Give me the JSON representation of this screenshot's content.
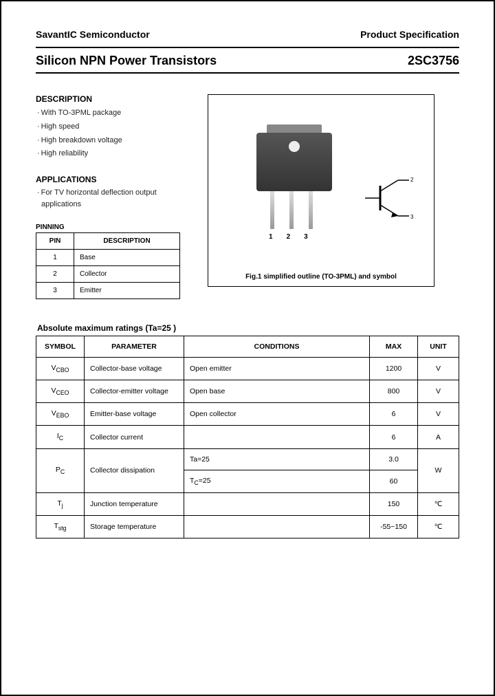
{
  "header": {
    "company": "SavantIC Semiconductor",
    "spec": "Product Specification"
  },
  "title": {
    "main": "Silicon NPN Power Transistors",
    "part": "2SC3756"
  },
  "description": {
    "heading": "DESCRIPTION",
    "items": [
      "With TO-3PML package",
      "High speed",
      "High breakdown voltage",
      "High reliability"
    ]
  },
  "applications": {
    "heading": "APPLICATIONS",
    "items": [
      "For TV horizontal deflection output applications"
    ]
  },
  "pinning": {
    "heading": "PINNING",
    "cols": [
      "PIN",
      "DESCRIPTION"
    ],
    "rows": [
      [
        "1",
        "Base"
      ],
      [
        "2",
        "Collector"
      ],
      [
        "3",
        "Emitter"
      ]
    ]
  },
  "figure": {
    "caption": "Fig.1 simplified outline (TO-3PML) and symbol",
    "lead_labels": [
      "1",
      "2",
      "3"
    ],
    "symbol_pins": {
      "base": "1",
      "collector": "2",
      "emitter": "3"
    },
    "package_body_color": "#3a3a3a",
    "package_tab_color": "#888888",
    "lead_color": "#bbbbbb"
  },
  "ratings": {
    "heading": "Absolute maximum ratings (Ta=25 )",
    "cols": [
      "SYMBOL",
      "PARAMETER",
      "CONDITIONS",
      "MAX",
      "UNIT"
    ],
    "rows": [
      {
        "symbol_html": "V<sub>CBO</sub>",
        "parameter": "Collector-base voltage",
        "conditions": "Open emitter",
        "max": "1200",
        "unit": "V"
      },
      {
        "symbol_html": "V<sub>CEO</sub>",
        "parameter": "Collector-emitter voltage",
        "conditions": "Open base",
        "max": "800",
        "unit": "V"
      },
      {
        "symbol_html": "V<sub>EBO</sub>",
        "parameter": "Emitter-base voltage",
        "conditions": "Open collector",
        "max": "6",
        "unit": "V"
      },
      {
        "symbol_html": "I<sub>C</sub>",
        "parameter": "Collector current",
        "conditions": "",
        "max": "6",
        "unit": "A"
      },
      {
        "symbol_html": "P<sub>C</sub>",
        "parameter": "Collector dissipation",
        "conditions_split": [
          "Ta=25",
          "T<sub>C</sub>=25"
        ],
        "max_split": [
          "3.0",
          "60"
        ],
        "unit": "W",
        "rowspan": 2
      },
      {
        "symbol_html": "T<sub>j</sub>",
        "parameter": "Junction temperature",
        "conditions": "",
        "max": "150",
        "unit": "℃"
      },
      {
        "symbol_html": "T<sub>stg</sub>",
        "parameter": "Storage temperature",
        "conditions": "",
        "max": "-55~150",
        "unit": "℃"
      }
    ]
  },
  "style": {
    "text_color": "#000000",
    "border_color": "#000000",
    "background": "#ffffff",
    "fontsize_body": 11,
    "fontsize_heading": 12,
    "fontsize_title": 18,
    "fontsize_table": 10.5
  }
}
